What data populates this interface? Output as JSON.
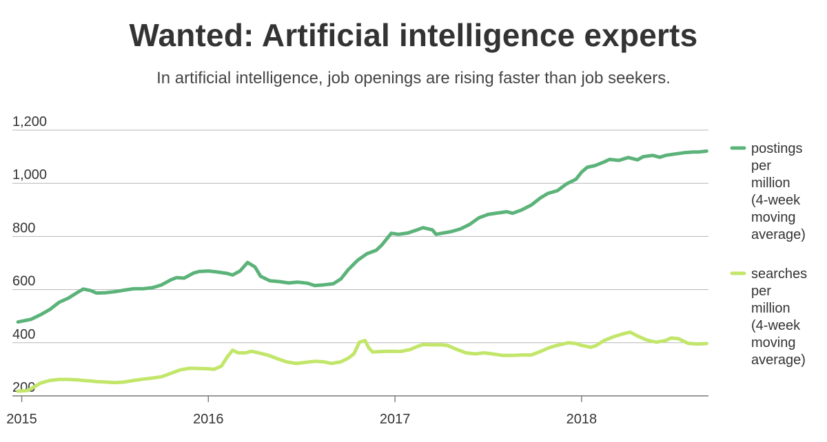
{
  "chart_data": {
    "type": "line",
    "title": "Wanted: Artificial intelligence experts",
    "subtitle": "In artificial intelligence, job openings are rising faster than job seekers.",
    "xlabel": "",
    "ylabel": "",
    "xlim": [
      2014.95,
      2018.68
    ],
    "ylim": [
      200,
      1200
    ],
    "y_ticks": [
      200,
      400,
      600,
      800,
      1000,
      1200
    ],
    "y_tick_labels": [
      "200",
      "400",
      "600",
      "800",
      "1,000",
      "1,200"
    ],
    "x_ticks": [
      2015,
      2016,
      2017,
      2018
    ],
    "x_tick_labels": [
      "2015",
      "2016",
      "2017",
      "2018"
    ],
    "grid": true,
    "legend_position": "right",
    "series": [
      {
        "name": "postings per million (4-week moving average)",
        "legend_lines": [
          "postings",
          "per",
          "million",
          "(4-week",
          "moving",
          "average)"
        ],
        "color": "#5cb37a",
        "points": [
          [
            2014.98,
            478
          ],
          [
            2015.05,
            488
          ],
          [
            2015.1,
            505
          ],
          [
            2015.15,
            525
          ],
          [
            2015.2,
            552
          ],
          [
            2015.25,
            568
          ],
          [
            2015.3,
            590
          ],
          [
            2015.33,
            602
          ],
          [
            2015.37,
            596
          ],
          [
            2015.4,
            587
          ],
          [
            2015.45,
            588
          ],
          [
            2015.5,
            592
          ],
          [
            2015.55,
            598
          ],
          [
            2015.6,
            603
          ],
          [
            2015.65,
            603
          ],
          [
            2015.7,
            607
          ],
          [
            2015.75,
            618
          ],
          [
            2015.8,
            637
          ],
          [
            2015.83,
            645
          ],
          [
            2015.87,
            643
          ],
          [
            2015.92,
            662
          ],
          [
            2015.95,
            668
          ],
          [
            2016.0,
            670
          ],
          [
            2016.05,
            666
          ],
          [
            2016.1,
            661
          ],
          [
            2016.13,
            655
          ],
          [
            2016.17,
            670
          ],
          [
            2016.21,
            702
          ],
          [
            2016.25,
            685
          ],
          [
            2016.28,
            650
          ],
          [
            2016.33,
            633
          ],
          [
            2016.38,
            630
          ],
          [
            2016.43,
            625
          ],
          [
            2016.48,
            628
          ],
          [
            2016.53,
            624
          ],
          [
            2016.57,
            615
          ],
          [
            2016.62,
            618
          ],
          [
            2016.67,
            622
          ],
          [
            2016.71,
            640
          ],
          [
            2016.75,
            675
          ],
          [
            2016.8,
            710
          ],
          [
            2016.85,
            735
          ],
          [
            2016.9,
            748
          ],
          [
            2016.93,
            768
          ],
          [
            2016.98,
            812
          ],
          [
            2017.02,
            808
          ],
          [
            2017.07,
            813
          ],
          [
            2017.12,
            825
          ],
          [
            2017.15,
            833
          ],
          [
            2017.2,
            825
          ],
          [
            2017.22,
            808
          ],
          [
            2017.25,
            812
          ],
          [
            2017.3,
            818
          ],
          [
            2017.35,
            828
          ],
          [
            2017.4,
            845
          ],
          [
            2017.45,
            870
          ],
          [
            2017.5,
            883
          ],
          [
            2017.55,
            888
          ],
          [
            2017.6,
            893
          ],
          [
            2017.63,
            887
          ],
          [
            2017.68,
            900
          ],
          [
            2017.73,
            918
          ],
          [
            2017.78,
            945
          ],
          [
            2017.82,
            962
          ],
          [
            2017.87,
            972
          ],
          [
            2017.92,
            998
          ],
          [
            2017.97,
            1015
          ],
          [
            2018.0,
            1042
          ],
          [
            2018.03,
            1060
          ],
          [
            2018.07,
            1066
          ],
          [
            2018.12,
            1080
          ],
          [
            2018.15,
            1090
          ],
          [
            2018.2,
            1086
          ],
          [
            2018.25,
            1097
          ],
          [
            2018.3,
            1088
          ],
          [
            2018.33,
            1100
          ],
          [
            2018.38,
            1105
          ],
          [
            2018.42,
            1098
          ],
          [
            2018.45,
            1105
          ],
          [
            2018.5,
            1110
          ],
          [
            2018.55,
            1115
          ],
          [
            2018.6,
            1118
          ],
          [
            2018.63,
            1118
          ],
          [
            2018.67,
            1121
          ]
        ]
      },
      {
        "name": "searches per million (4-week moving average)",
        "legend_lines": [
          "searches",
          "per",
          "million",
          "(4-week",
          "moving",
          "average)"
        ],
        "color": "#c2e66a",
        "points": [
          [
            2014.98,
            218
          ],
          [
            2015.03,
            220
          ],
          [
            2015.07,
            235
          ],
          [
            2015.1,
            248
          ],
          [
            2015.15,
            258
          ],
          [
            2015.2,
            262
          ],
          [
            2015.25,
            262
          ],
          [
            2015.3,
            260
          ],
          [
            2015.33,
            258
          ],
          [
            2015.37,
            256
          ],
          [
            2015.4,
            254
          ],
          [
            2015.45,
            252
          ],
          [
            2015.5,
            250
          ],
          [
            2015.55,
            252
          ],
          [
            2015.6,
            258
          ],
          [
            2015.65,
            263
          ],
          [
            2015.7,
            267
          ],
          [
            2015.75,
            272
          ],
          [
            2015.8,
            285
          ],
          [
            2015.85,
            298
          ],
          [
            2015.9,
            304
          ],
          [
            2015.95,
            303
          ],
          [
            2016.0,
            302
          ],
          [
            2016.03,
            300
          ],
          [
            2016.07,
            312
          ],
          [
            2016.1,
            345
          ],
          [
            2016.13,
            372
          ],
          [
            2016.16,
            362
          ],
          [
            2016.2,
            362
          ],
          [
            2016.23,
            368
          ],
          [
            2016.27,
            362
          ],
          [
            2016.32,
            353
          ],
          [
            2016.37,
            340
          ],
          [
            2016.42,
            328
          ],
          [
            2016.47,
            322
          ],
          [
            2016.52,
            326
          ],
          [
            2016.57,
            330
          ],
          [
            2016.62,
            328
          ],
          [
            2016.66,
            322
          ],
          [
            2016.71,
            328
          ],
          [
            2016.75,
            342
          ],
          [
            2016.78,
            358
          ],
          [
            2016.81,
            402
          ],
          [
            2016.84,
            408
          ],
          [
            2016.86,
            380
          ],
          [
            2016.88,
            365
          ],
          [
            2016.93,
            367
          ],
          [
            2016.98,
            368
          ],
          [
            2017.03,
            367
          ],
          [
            2017.08,
            374
          ],
          [
            2017.12,
            386
          ],
          [
            2017.15,
            393
          ],
          [
            2017.2,
            392
          ],
          [
            2017.25,
            392
          ],
          [
            2017.28,
            390
          ],
          [
            2017.33,
            375
          ],
          [
            2017.38,
            362
          ],
          [
            2017.43,
            358
          ],
          [
            2017.48,
            362
          ],
          [
            2017.53,
            357
          ],
          [
            2017.58,
            352
          ],
          [
            2017.63,
            352
          ],
          [
            2017.68,
            354
          ],
          [
            2017.73,
            354
          ],
          [
            2017.78,
            367
          ],
          [
            2017.83,
            382
          ],
          [
            2017.88,
            392
          ],
          [
            2017.93,
            400
          ],
          [
            2017.97,
            397
          ],
          [
            2018.0,
            390
          ],
          [
            2018.05,
            383
          ],
          [
            2018.08,
            390
          ],
          [
            2018.12,
            408
          ],
          [
            2018.17,
            422
          ],
          [
            2018.22,
            433
          ],
          [
            2018.26,
            440
          ],
          [
            2018.3,
            425
          ],
          [
            2018.35,
            410
          ],
          [
            2018.4,
            402
          ],
          [
            2018.45,
            408
          ],
          [
            2018.48,
            418
          ],
          [
            2018.52,
            415
          ],
          [
            2018.57,
            398
          ],
          [
            2018.62,
            395
          ],
          [
            2018.67,
            397
          ]
        ]
      }
    ]
  }
}
